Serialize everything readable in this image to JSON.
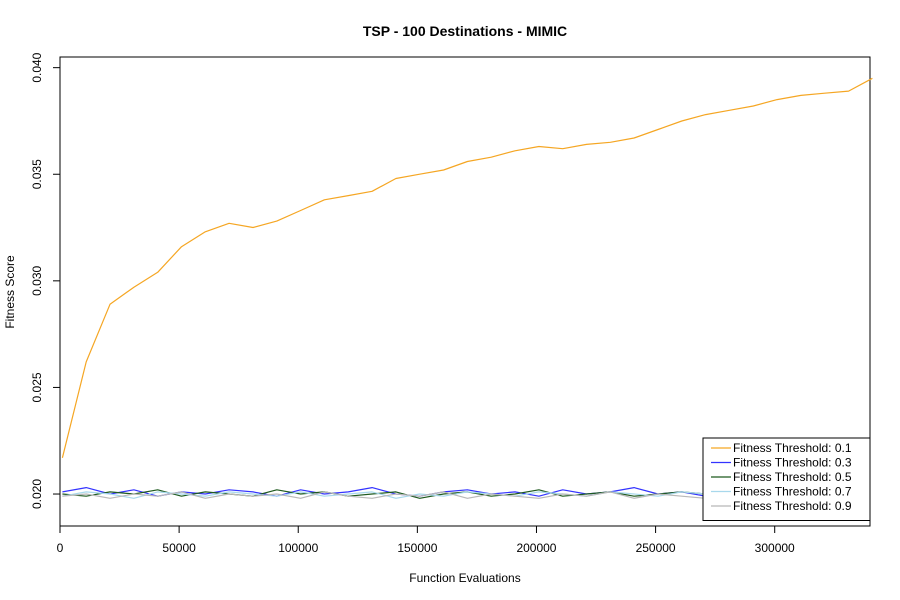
{
  "chart_data": {
    "type": "line",
    "title": "TSP - 100 Destinations - MIMIC",
    "xlabel": "Function Evaluations",
    "ylabel": "Fitness Score",
    "xlim": [
      0,
      340000
    ],
    "ylim": [
      0.0185,
      0.0405
    ],
    "x_ticks": [
      0,
      50000,
      100000,
      150000,
      200000,
      250000,
      300000
    ],
    "x_tick_labels": [
      "0",
      "50000",
      "100000",
      "150000",
      "200000",
      "250000",
      "300000"
    ],
    "y_ticks": [
      0.02,
      0.025,
      0.03,
      0.035,
      0.04
    ],
    "y_tick_labels": [
      "0.020",
      "0.025",
      "0.030",
      "0.035",
      "0.040"
    ],
    "grid": false,
    "legend_position": "bottom-right",
    "series": [
      {
        "name": "Fitness Threshold: 0.1",
        "color": "#f5a623",
        "x_start": 1000,
        "x_step": 10000,
        "values": [
          0.0217,
          0.0262,
          0.0289,
          0.0297,
          0.0304,
          0.0316,
          0.0323,
          0.0327,
          0.0325,
          0.0328,
          0.0333,
          0.0338,
          0.034,
          0.0342,
          0.0348,
          0.035,
          0.0352,
          0.0356,
          0.0358,
          0.0361,
          0.0363,
          0.0362,
          0.0364,
          0.0365,
          0.0367,
          0.0371,
          0.0375,
          0.0378,
          0.038,
          0.0382,
          0.0385,
          0.0387,
          0.0388,
          0.0389,
          0.0395
        ]
      },
      {
        "name": "Fitness Threshold: 0.3",
        "color": "#3333ff",
        "x_start": 1000,
        "x_step": 10000,
        "values": [
          0.0201,
          0.0203,
          0.02,
          0.0202,
          0.0199,
          0.0201,
          0.02,
          0.0202,
          0.0201,
          0.0199,
          0.0202,
          0.02,
          0.0201,
          0.0203,
          0.02,
          0.0199,
          0.0201,
          0.0202,
          0.02,
          0.0201,
          0.0199,
          0.0202,
          0.02,
          0.0201,
          0.0203,
          0.02,
          0.0201,
          0.0199,
          0.0202
        ]
      },
      {
        "name": "Fitness Threshold: 0.5",
        "color": "#1f5a1f",
        "x_start": 1000,
        "x_step": 10000,
        "values": [
          0.02,
          0.0199,
          0.0201,
          0.02,
          0.0202,
          0.0199,
          0.0201,
          0.02,
          0.0199,
          0.0202,
          0.02,
          0.0201,
          0.0199,
          0.02,
          0.0201,
          0.0198,
          0.02,
          0.0201,
          0.0199,
          0.02,
          0.0202,
          0.0199,
          0.02,
          0.0201,
          0.0199,
          0.02,
          0.0201,
          0.02,
          0.0199
        ]
      },
      {
        "name": "Fitness Threshold: 0.7",
        "color": "#a8d8ec",
        "x_start": 1000,
        "x_step": 10000,
        "values": [
          0.0199,
          0.0201,
          0.02,
          0.0198,
          0.0201,
          0.02,
          0.0199,
          0.0201,
          0.02,
          0.0199,
          0.0201,
          0.0199,
          0.02,
          0.0201,
          0.0198,
          0.02,
          0.0199,
          0.0201,
          0.02,
          0.0199,
          0.0201,
          0.02,
          0.0199,
          0.0201,
          0.02,
          0.0199,
          0.0201,
          0.02,
          0.0199
        ]
      },
      {
        "name": "Fitness Threshold: 0.9",
        "color": "#b8b8b8",
        "x_start": 1000,
        "x_step": 10000,
        "values": [
          0.0199,
          0.02,
          0.0198,
          0.02,
          0.0199,
          0.0201,
          0.0198,
          0.02,
          0.0199,
          0.02,
          0.0198,
          0.0201,
          0.0199,
          0.0198,
          0.02,
          0.0199,
          0.0201,
          0.0198,
          0.02,
          0.0199,
          0.0198,
          0.02,
          0.0199,
          0.0201,
          0.0198,
          0.02,
          0.0199,
          0.0198,
          0.02
        ]
      }
    ]
  }
}
